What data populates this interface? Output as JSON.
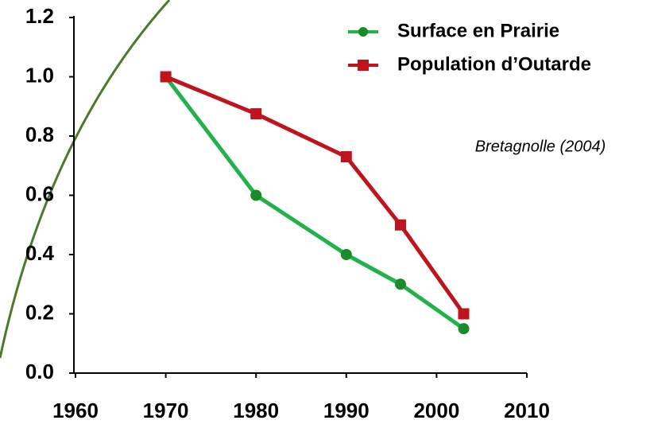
{
  "chart_data": {
    "type": "line",
    "annotation": "Bretagnolle (2004)",
    "xlim": [
      1960,
      2010
    ],
    "xticks": [
      1960,
      1970,
      1980,
      1990,
      2000,
      2010
    ],
    "ylim": [
      0,
      1.2
    ],
    "yticks": [
      {
        "value": 0,
        "label": "0.0"
      },
      0.2,
      0.4,
      0.6,
      0.8,
      {
        "value": 1,
        "label": "1.0"
      },
      1.2
    ],
    "series": [
      {
        "name": "Surface en Prairie",
        "color": "#22b24c",
        "marker_color": "#1a8a2a",
        "marker": "circle",
        "x": [
          1970,
          1980,
          1990,
          1996,
          2003
        ],
        "values": [
          1.0,
          0.6,
          0.4,
          0.3,
          0.15
        ]
      },
      {
        "name": "Population d’Outarde",
        "color": "#c0141c",
        "marker_color": "#c0141c",
        "marker": "square",
        "x": [
          1970,
          1980,
          1990,
          1996,
          2003
        ],
        "values": [
          1.0,
          0.875,
          0.73,
          0.5,
          0.2
        ]
      }
    ]
  }
}
